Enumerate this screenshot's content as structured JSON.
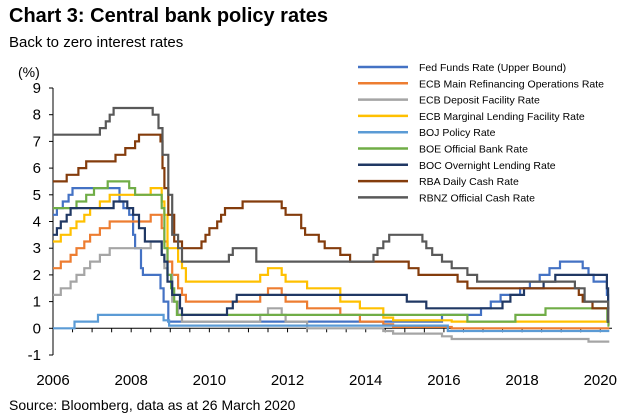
{
  "title": "Chart 3: Central bank policy rates",
  "subtitle": "Back to zero interest rates",
  "source": "Source: Bloomberg, data as at 26 March 2020",
  "chart_data": {
    "type": "line",
    "ylabel": "(%)",
    "xlim": [
      2006,
      2020.3
    ],
    "ylim": [
      -1,
      9
    ],
    "xticks": [
      "2006",
      "2008",
      "2010",
      "2012",
      "2014",
      "2016",
      "2018",
      "2020"
    ],
    "xtick_values": [
      2006,
      2008,
      2010,
      2012,
      2014,
      2016,
      2018,
      2020
    ],
    "yticks": [
      "-1",
      "0",
      "1",
      "2",
      "3",
      "4",
      "5",
      "6",
      "7",
      "8",
      "9"
    ],
    "ytick_values": [
      -1,
      0,
      1,
      2,
      3,
      4,
      5,
      6,
      7,
      8,
      9
    ],
    "legend_position": "top-right",
    "series": [
      {
        "name": "Fed Funds Rate (Upper Bound)",
        "color": "#4472c4",
        "points": [
          [
            2006,
            4.25
          ],
          [
            2006.1,
            4.5
          ],
          [
            2006.25,
            4.75
          ],
          [
            2006.4,
            5.0
          ],
          [
            2006.5,
            5.25
          ],
          [
            2007.7,
            4.75
          ],
          [
            2007.8,
            4.5
          ],
          [
            2007.95,
            4.25
          ],
          [
            2008.05,
            3.5
          ],
          [
            2008.1,
            3.0
          ],
          [
            2008.25,
            2.25
          ],
          [
            2008.3,
            2.0
          ],
          [
            2008.75,
            1.5
          ],
          [
            2008.83,
            1.0
          ],
          [
            2008.95,
            0.25
          ],
          [
            2015.95,
            0.5
          ],
          [
            2016.95,
            0.75
          ],
          [
            2017.2,
            1.0
          ],
          [
            2017.45,
            1.25
          ],
          [
            2017.95,
            1.5
          ],
          [
            2018.2,
            1.75
          ],
          [
            2018.45,
            2.0
          ],
          [
            2018.7,
            2.25
          ],
          [
            2018.97,
            2.5
          ],
          [
            2019.55,
            2.25
          ],
          [
            2019.7,
            2.0
          ],
          [
            2019.83,
            1.75
          ],
          [
            2020.17,
            1.25
          ],
          [
            2020.2,
            0.25
          ],
          [
            2020.23,
            0.25
          ]
        ]
      },
      {
        "name": "ECB Main Refinancing Operations Rate",
        "color": "#ed7d31",
        "points": [
          [
            2006,
            2.25
          ],
          [
            2006.2,
            2.5
          ],
          [
            2006.45,
            2.75
          ],
          [
            2006.6,
            3.0
          ],
          [
            2006.8,
            3.25
          ],
          [
            2006.95,
            3.5
          ],
          [
            2007.2,
            3.75
          ],
          [
            2007.45,
            4.0
          ],
          [
            2008.5,
            4.25
          ],
          [
            2008.78,
            3.75
          ],
          [
            2008.85,
            3.25
          ],
          [
            2008.93,
            2.5
          ],
          [
            2009.05,
            2.0
          ],
          [
            2009.2,
            1.5
          ],
          [
            2009.3,
            1.25
          ],
          [
            2009.4,
            1.0
          ],
          [
            2011.3,
            1.25
          ],
          [
            2011.5,
            1.5
          ],
          [
            2011.85,
            1.25
          ],
          [
            2011.95,
            1.0
          ],
          [
            2012.5,
            0.75
          ],
          [
            2013.35,
            0.5
          ],
          [
            2013.85,
            0.25
          ],
          [
            2014.45,
            0.15
          ],
          [
            2014.7,
            0.05
          ],
          [
            2016.2,
            0.0
          ],
          [
            2020.23,
            0.0
          ]
        ]
      },
      {
        "name": "ECB Deposit Facility Rate",
        "color": "#a5a5a5",
        "points": [
          [
            2006,
            1.25
          ],
          [
            2006.2,
            1.5
          ],
          [
            2006.45,
            1.75
          ],
          [
            2006.6,
            2.0
          ],
          [
            2006.8,
            2.25
          ],
          [
            2006.95,
            2.5
          ],
          [
            2007.2,
            2.75
          ],
          [
            2007.45,
            3.0
          ],
          [
            2008.5,
            3.25
          ],
          [
            2008.78,
            2.75
          ],
          [
            2008.85,
            2.25
          ],
          [
            2008.93,
            2.0
          ],
          [
            2009.05,
            1.0
          ],
          [
            2009.2,
            0.5
          ],
          [
            2009.3,
            0.25
          ],
          [
            2011.3,
            0.5
          ],
          [
            2011.5,
            0.75
          ],
          [
            2011.85,
            0.5
          ],
          [
            2011.95,
            0.25
          ],
          [
            2012.5,
            0.0
          ],
          [
            2014.45,
            -0.1
          ],
          [
            2014.7,
            -0.2
          ],
          [
            2015.95,
            -0.3
          ],
          [
            2016.2,
            -0.4
          ],
          [
            2019.7,
            -0.5
          ],
          [
            2020.23,
            -0.5
          ]
        ]
      },
      {
        "name": "ECB Marginal Lending Facility Rate",
        "color": "#ffc000",
        "points": [
          [
            2006,
            3.25
          ],
          [
            2006.2,
            3.5
          ],
          [
            2006.45,
            3.75
          ],
          [
            2006.6,
            4.0
          ],
          [
            2006.8,
            4.25
          ],
          [
            2006.95,
            4.5
          ],
          [
            2007.2,
            4.75
          ],
          [
            2007.45,
            5.0
          ],
          [
            2008.5,
            5.25
          ],
          [
            2008.78,
            4.75
          ],
          [
            2008.85,
            4.25
          ],
          [
            2008.93,
            3.0
          ],
          [
            2009.05,
            3.0
          ],
          [
            2009.2,
            2.5
          ],
          [
            2009.3,
            2.25
          ],
          [
            2009.4,
            1.75
          ],
          [
            2011.3,
            2.0
          ],
          [
            2011.5,
            2.25
          ],
          [
            2011.85,
            2.0
          ],
          [
            2011.95,
            1.75
          ],
          [
            2012.5,
            1.5
          ],
          [
            2013.35,
            1.0
          ],
          [
            2013.85,
            0.75
          ],
          [
            2014.45,
            0.4
          ],
          [
            2014.7,
            0.3
          ],
          [
            2016.2,
            0.25
          ],
          [
            2020.23,
            0.25
          ]
        ]
      },
      {
        "name": "BOJ Policy Rate",
        "color": "#5b9bd5",
        "points": [
          [
            2006,
            0.0
          ],
          [
            2006.55,
            0.25
          ],
          [
            2007.15,
            0.5
          ],
          [
            2008.83,
            0.3
          ],
          [
            2008.97,
            0.1
          ],
          [
            2016.1,
            -0.1
          ],
          [
            2020.23,
            -0.1
          ]
        ]
      },
      {
        "name": "BOE Official Bank Rate",
        "color": "#70ad47",
        "points": [
          [
            2006,
            4.5
          ],
          [
            2006.6,
            4.75
          ],
          [
            2006.85,
            5.0
          ],
          [
            2007.05,
            5.25
          ],
          [
            2007.4,
            5.5
          ],
          [
            2007.95,
            5.25
          ],
          [
            2008.1,
            5.0
          ],
          [
            2008.3,
            5.0
          ],
          [
            2008.78,
            4.5
          ],
          [
            2008.85,
            3.0
          ],
          [
            2008.93,
            2.0
          ],
          [
            2009.02,
            1.5
          ],
          [
            2009.1,
            1.0
          ],
          [
            2009.17,
            0.5
          ],
          [
            2016.6,
            0.25
          ],
          [
            2017.83,
            0.5
          ],
          [
            2018.6,
            0.75
          ],
          [
            2020.18,
            0.25
          ],
          [
            2020.21,
            0.1
          ],
          [
            2020.23,
            0.1
          ]
        ]
      },
      {
        "name": "BOC Overnight Lending Rate",
        "color": "#203864",
        "points": [
          [
            2006,
            3.5
          ],
          [
            2006.1,
            3.75
          ],
          [
            2006.2,
            4.0
          ],
          [
            2006.35,
            4.25
          ],
          [
            2006.45,
            4.5
          ],
          [
            2007.55,
            4.75
          ],
          [
            2007.9,
            4.5
          ],
          [
            2008.05,
            4.25
          ],
          [
            2008.2,
            3.75
          ],
          [
            2008.35,
            3.25
          ],
          [
            2008.78,
            2.75
          ],
          [
            2008.85,
            2.5
          ],
          [
            2008.93,
            1.75
          ],
          [
            2009.05,
            1.25
          ],
          [
            2009.25,
            0.75
          ],
          [
            2009.3,
            0.5
          ],
          [
            2010.45,
            0.75
          ],
          [
            2010.6,
            1.0
          ],
          [
            2010.7,
            1.25
          ],
          [
            2015.05,
            1.0
          ],
          [
            2015.55,
            0.75
          ],
          [
            2017.5,
            1.0
          ],
          [
            2017.7,
            1.25
          ],
          [
            2018.05,
            1.5
          ],
          [
            2018.55,
            1.75
          ],
          [
            2018.85,
            2.0
          ],
          [
            2020.17,
            1.5
          ],
          [
            2020.2,
            0.75
          ],
          [
            2020.23,
            0.75
          ]
        ]
      },
      {
        "name": "RBA Daily Cash Rate",
        "color": "#843c0c",
        "points": [
          [
            2006,
            5.5
          ],
          [
            2006.35,
            5.75
          ],
          [
            2006.65,
            6.0
          ],
          [
            2006.85,
            6.25
          ],
          [
            2007.6,
            6.5
          ],
          [
            2007.85,
            6.75
          ],
          [
            2008.1,
            7.0
          ],
          [
            2008.2,
            7.25
          ],
          [
            2008.75,
            7.0
          ],
          [
            2008.8,
            6.0
          ],
          [
            2008.85,
            5.25
          ],
          [
            2008.95,
            4.25
          ],
          [
            2009.1,
            3.25
          ],
          [
            2009.3,
            3.0
          ],
          [
            2009.8,
            3.25
          ],
          [
            2009.9,
            3.5
          ],
          [
            2010.0,
            3.75
          ],
          [
            2010.2,
            4.0
          ],
          [
            2010.3,
            4.25
          ],
          [
            2010.4,
            4.5
          ],
          [
            2010.85,
            4.75
          ],
          [
            2011.85,
            4.5
          ],
          [
            2011.95,
            4.25
          ],
          [
            2012.35,
            3.75
          ],
          [
            2012.45,
            3.5
          ],
          [
            2012.8,
            3.25
          ],
          [
            2012.95,
            3.0
          ],
          [
            2013.35,
            2.75
          ],
          [
            2013.6,
            2.5
          ],
          [
            2015.1,
            2.25
          ],
          [
            2015.35,
            2.0
          ],
          [
            2016.35,
            1.75
          ],
          [
            2016.6,
            1.5
          ],
          [
            2019.45,
            1.25
          ],
          [
            2019.55,
            1.0
          ],
          [
            2019.8,
            0.75
          ],
          [
            2020.2,
            0.25
          ],
          [
            2020.23,
            0.25
          ]
        ]
      },
      {
        "name": "RBNZ Official Cash Rate",
        "color": "#595959",
        "points": [
          [
            2006,
            7.25
          ],
          [
            2007.2,
            7.5
          ],
          [
            2007.35,
            7.75
          ],
          [
            2007.45,
            8.0
          ],
          [
            2007.55,
            8.25
          ],
          [
            2008.55,
            8.0
          ],
          [
            2008.7,
            7.5
          ],
          [
            2008.8,
            6.5
          ],
          [
            2008.95,
            5.0
          ],
          [
            2009.05,
            3.5
          ],
          [
            2009.2,
            3.0
          ],
          [
            2009.3,
            2.5
          ],
          [
            2010.5,
            2.75
          ],
          [
            2010.6,
            3.0
          ],
          [
            2011.2,
            2.5
          ],
          [
            2014.2,
            2.75
          ],
          [
            2014.3,
            3.0
          ],
          [
            2014.45,
            3.25
          ],
          [
            2014.6,
            3.5
          ],
          [
            2015.45,
            3.25
          ],
          [
            2015.55,
            3.0
          ],
          [
            2015.7,
            2.75
          ],
          [
            2015.95,
            2.5
          ],
          [
            2016.2,
            2.25
          ],
          [
            2016.6,
            2.0
          ],
          [
            2016.85,
            1.75
          ],
          [
            2019.35,
            1.5
          ],
          [
            2019.6,
            1.0
          ],
          [
            2020.2,
            0.25
          ],
          [
            2020.23,
            0.25
          ]
        ]
      }
    ]
  }
}
